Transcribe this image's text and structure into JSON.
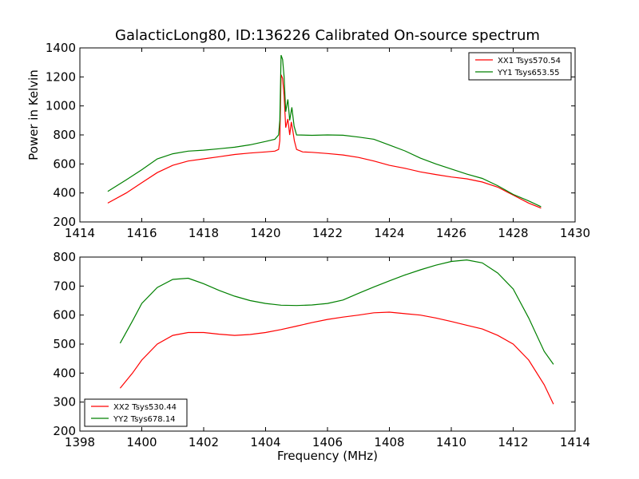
{
  "figure": {
    "title": "GalacticLong80, ID:136226 Calibrated On-source spectrum",
    "ylabel": "Power in Kelvin",
    "xlabel": "Frequency (MHz)"
  },
  "chart_data": [
    {
      "type": "line",
      "title": "GalacticLong80, ID:136226 Calibrated On-source spectrum",
      "xlabel": "",
      "ylabel": "Power in Kelvin",
      "xlim": [
        1414,
        1430
      ],
      "ylim": [
        200,
        1400
      ],
      "xticks": [
        1414,
        1416,
        1418,
        1420,
        1422,
        1424,
        1426,
        1428,
        1430
      ],
      "yticks": [
        200,
        400,
        600,
        800,
        1000,
        1200,
        1400
      ],
      "grid": false,
      "legend_position": "top-right",
      "series": [
        {
          "name": "XX1 Tsys570.54",
          "color": "#ff0000",
          "points": [
            [
              1414.9,
              330
            ],
            [
              1415.5,
              400
            ],
            [
              1416.0,
              470
            ],
            [
              1416.5,
              540
            ],
            [
              1417.0,
              590
            ],
            [
              1417.5,
              620
            ],
            [
              1418.0,
              635
            ],
            [
              1418.5,
              650
            ],
            [
              1419.0,
              665
            ],
            [
              1419.5,
              675
            ],
            [
              1420.0,
              683
            ],
            [
              1420.3,
              688
            ],
            [
              1420.42,
              700
            ],
            [
              1420.46,
              760
            ],
            [
              1420.5,
              1215
            ],
            [
              1420.55,
              1190
            ],
            [
              1420.6,
              1070
            ],
            [
              1420.65,
              850
            ],
            [
              1420.72,
              910
            ],
            [
              1420.78,
              800
            ],
            [
              1420.83,
              890
            ],
            [
              1420.88,
              830
            ],
            [
              1420.93,
              760
            ],
            [
              1421.0,
              700
            ],
            [
              1421.2,
              683
            ],
            [
              1421.5,
              680
            ],
            [
              1422.0,
              672
            ],
            [
              1422.5,
              662
            ],
            [
              1423.0,
              645
            ],
            [
              1423.5,
              620
            ],
            [
              1424.0,
              590
            ],
            [
              1424.5,
              570
            ],
            [
              1425.0,
              545
            ],
            [
              1425.5,
              527
            ],
            [
              1426.0,
              510
            ],
            [
              1426.5,
              497
            ],
            [
              1427.0,
              475
            ],
            [
              1427.5,
              440
            ],
            [
              1428.0,
              385
            ],
            [
              1428.5,
              330
            ],
            [
              1428.9,
              295
            ]
          ]
        },
        {
          "name": "YY1 Tsys653.55",
          "color": "#008000",
          "points": [
            [
              1414.9,
              410
            ],
            [
              1415.5,
              490
            ],
            [
              1416.0,
              560
            ],
            [
              1416.5,
              635
            ],
            [
              1417.0,
              670
            ],
            [
              1417.5,
              688
            ],
            [
              1418.0,
              695
            ],
            [
              1418.5,
              705
            ],
            [
              1419.0,
              715
            ],
            [
              1419.5,
              732
            ],
            [
              1420.0,
              755
            ],
            [
              1420.3,
              770
            ],
            [
              1420.42,
              800
            ],
            [
              1420.46,
              900
            ],
            [
              1420.5,
              1350
            ],
            [
              1420.55,
              1320
            ],
            [
              1420.6,
              1200
            ],
            [
              1420.65,
              960
            ],
            [
              1420.72,
              1045
            ],
            [
              1420.78,
              900
            ],
            [
              1420.85,
              990
            ],
            [
              1420.92,
              860
            ],
            [
              1421.0,
              800
            ],
            [
              1421.5,
              797
            ],
            [
              1422.0,
              800
            ],
            [
              1422.5,
              798
            ],
            [
              1423.0,
              785
            ],
            [
              1423.5,
              770
            ],
            [
              1424.0,
              730
            ],
            [
              1424.5,
              690
            ],
            [
              1425.0,
              640
            ],
            [
              1425.5,
              600
            ],
            [
              1426.0,
              565
            ],
            [
              1426.5,
              530
            ],
            [
              1427.0,
              500
            ],
            [
              1427.5,
              450
            ],
            [
              1428.0,
              390
            ],
            [
              1428.5,
              345
            ],
            [
              1428.9,
              305
            ]
          ]
        }
      ]
    },
    {
      "type": "line",
      "title": "",
      "xlabel": "Frequency (MHz)",
      "ylabel": "",
      "xlim": [
        1398,
        1414
      ],
      "ylim": [
        200,
        800
      ],
      "xticks": [
        1398,
        1400,
        1402,
        1404,
        1406,
        1408,
        1410,
        1412,
        1414
      ],
      "yticks": [
        200,
        300,
        400,
        500,
        600,
        700,
        800
      ],
      "grid": false,
      "legend_position": "bottom-left",
      "series": [
        {
          "name": "XX2 Tsys530.44",
          "color": "#ff0000",
          "points": [
            [
              1399.3,
              348
            ],
            [
              1399.7,
              400
            ],
            [
              1400.0,
              445
            ],
            [
              1400.5,
              500
            ],
            [
              1401.0,
              530
            ],
            [
              1401.5,
              540
            ],
            [
              1402.0,
              540
            ],
            [
              1402.5,
              534
            ],
            [
              1403.0,
              530
            ],
            [
              1403.5,
              533
            ],
            [
              1404.0,
              540
            ],
            [
              1404.5,
              550
            ],
            [
              1405.0,
              562
            ],
            [
              1405.5,
              574
            ],
            [
              1406.0,
              585
            ],
            [
              1406.5,
              593
            ],
            [
              1407.0,
              600
            ],
            [
              1407.5,
              608
            ],
            [
              1408.0,
              610
            ],
            [
              1408.5,
              605
            ],
            [
              1409.0,
              600
            ],
            [
              1409.5,
              590
            ],
            [
              1410.0,
              578
            ],
            [
              1410.5,
              565
            ],
            [
              1411.0,
              552
            ],
            [
              1411.5,
              530
            ],
            [
              1412.0,
              500
            ],
            [
              1412.5,
              445
            ],
            [
              1413.0,
              360
            ],
            [
              1413.3,
              293
            ]
          ]
        },
        {
          "name": "YY2 Tsys678.14",
          "color": "#008000",
          "points": [
            [
              1399.3,
              503
            ],
            [
              1399.7,
              580
            ],
            [
              1400.0,
              640
            ],
            [
              1400.5,
              695
            ],
            [
              1401.0,
              723
            ],
            [
              1401.5,
              727
            ],
            [
              1402.0,
              708
            ],
            [
              1402.5,
              685
            ],
            [
              1403.0,
              665
            ],
            [
              1403.5,
              650
            ],
            [
              1404.0,
              640
            ],
            [
              1404.5,
              634
            ],
            [
              1405.0,
              633
            ],
            [
              1405.5,
              635
            ],
            [
              1406.0,
              640
            ],
            [
              1406.5,
              652
            ],
            [
              1407.0,
              675
            ],
            [
              1407.5,
              697
            ],
            [
              1408.0,
              718
            ],
            [
              1408.5,
              738
            ],
            [
              1409.0,
              756
            ],
            [
              1409.5,
              772
            ],
            [
              1410.0,
              785
            ],
            [
              1410.5,
              790
            ],
            [
              1411.0,
              780
            ],
            [
              1411.5,
              745
            ],
            [
              1412.0,
              690
            ],
            [
              1412.5,
              590
            ],
            [
              1413.0,
              475
            ],
            [
              1413.3,
              430
            ]
          ]
        }
      ]
    }
  ]
}
